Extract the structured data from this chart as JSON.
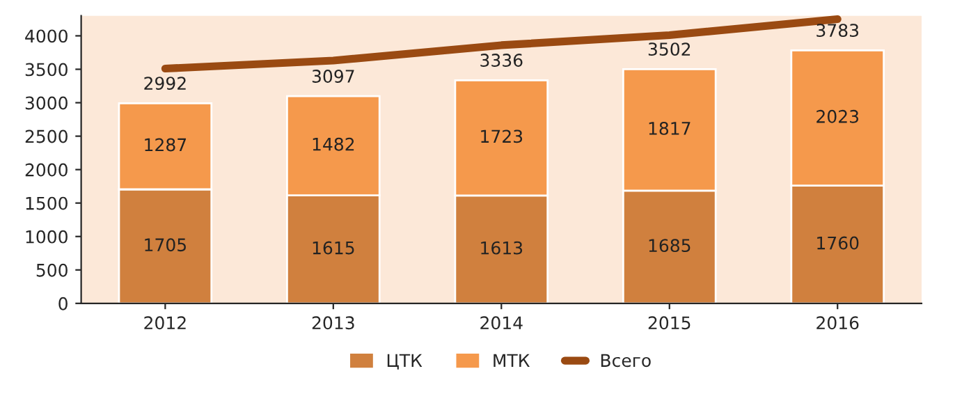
{
  "chart_data": {
    "type": "bar",
    "stacked": true,
    "categories": [
      "2012",
      "2013",
      "2014",
      "2015",
      "2016"
    ],
    "series": [
      {
        "name": "ЦТК",
        "color": "#d0803e",
        "values": [
          1705,
          1615,
          1613,
          1685,
          1760
        ],
        "value_labels": [
          "1705",
          "1615",
          "1613",
          "1685",
          "1760"
        ]
      },
      {
        "name": "МТК",
        "color": "#f5994c",
        "values": [
          1287,
          1482,
          1723,
          1817,
          2023
        ],
        "value_labels": [
          "1287",
          "1482",
          "1723",
          "1817",
          "2023"
        ]
      },
      {
        "name": "Всего",
        "type": "line",
        "color": "#9a4a12",
        "values": [
          3510,
          3630,
          3860,
          4010,
          4250
        ]
      }
    ],
    "totals": [
      "2992",
      "3097",
      "3336",
      "3502",
      "3783"
    ],
    "ylim": [
      0,
      4300
    ],
    "yticks": [
      0,
      500,
      1000,
      1500,
      2000,
      2500,
      3000,
      3500,
      4000
    ],
    "grid": false,
    "legend": "bottom",
    "marker": "none",
    "line_style": "solid"
  }
}
